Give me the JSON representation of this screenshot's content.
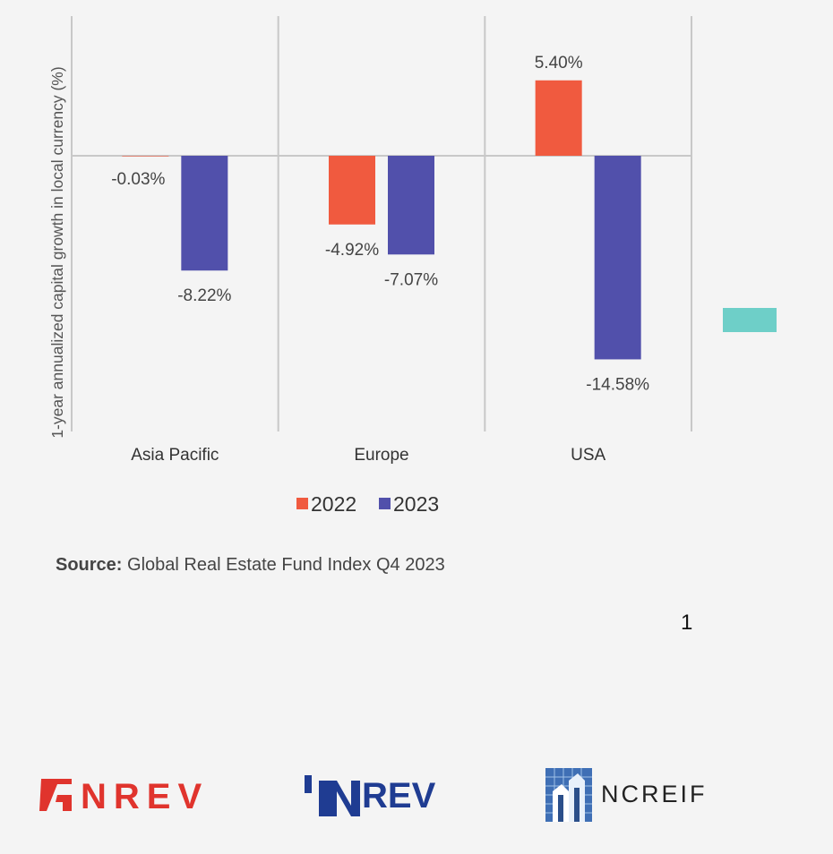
{
  "chart_data": {
    "type": "bar",
    "ylabel": "1-year annualized capital growth in local currency (%)",
    "categories": [
      "Asia Pacific",
      "Europe",
      "USA"
    ],
    "series": [
      {
        "name": "2022",
        "values": [
          -0.03,
          -4.92,
          5.4
        ],
        "labels": [
          "-0.03%",
          "-4.92%",
          "5.40%"
        ],
        "color": "#f05a3f"
      },
      {
        "name": "2023",
        "values": [
          -8.22,
          -7.07,
          -14.58
        ],
        "labels": [
          "-8.22%",
          "-7.07%",
          "-14.58%"
        ],
        "color": "#5150ab"
      }
    ],
    "ylim": [
      -20,
      10
    ],
    "legend": "bottom-center",
    "grid": "vertical category separators"
  },
  "source": {
    "label": "Source:",
    "text": "Global Real Estate Fund Index Q4 2023"
  },
  "page_number": "1",
  "logos": {
    "anrev": "ANREV",
    "inrev": "INREV",
    "ncreif": "NCREIF"
  },
  "colors": {
    "teal_swatch": "#6ecfc8"
  }
}
